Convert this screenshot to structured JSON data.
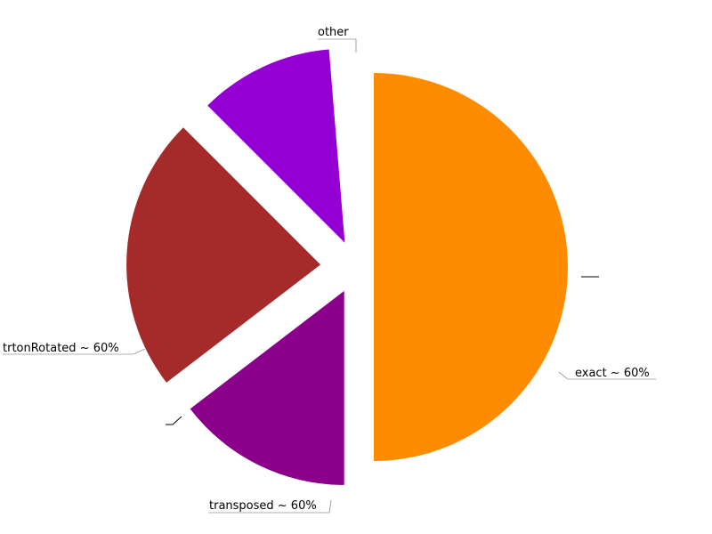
{
  "chart_data": {
    "type": "pie",
    "title": "",
    "series": [
      {
        "slices": [
          {
            "label": "other",
            "value": 50.0,
            "color": "#ff8c00"
          },
          {
            "label": "exact ~ 60%",
            "value": 14.6,
            "color": "#8b008b"
          },
          {
            "label": "transposed ~ 60%",
            "value": 22.9,
            "color": "#a52a2a"
          },
          {
            "label": "trtonRotated ~ 60%",
            "value": 11.2,
            "color": "#9400d3"
          },
          {
            "label": "",
            "value": 0.6,
            "color": "#ffffff"
          },
          {
            "label": "",
            "value": 0.7,
            "color": "#ffffff"
          }
        ]
      }
    ],
    "start_angle_deg": 270,
    "direction": "clockwise",
    "exploded": true
  }
}
